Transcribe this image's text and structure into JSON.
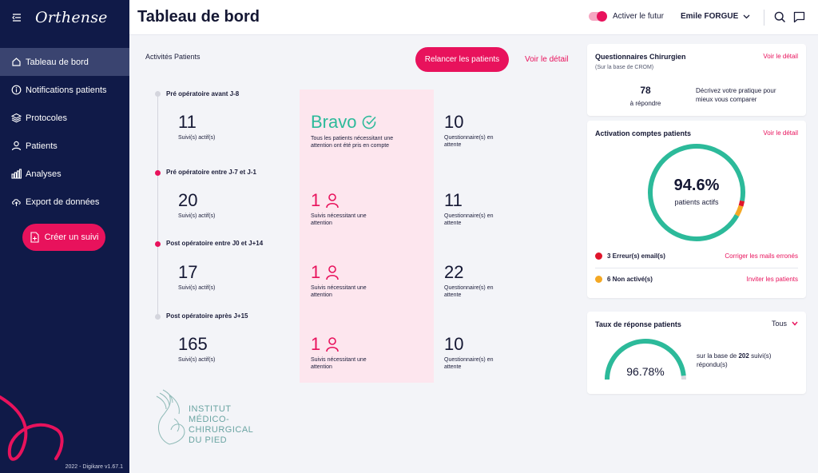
{
  "sidebar": {
    "logo": "Orthense",
    "items": [
      {
        "label": "Tableau de bord",
        "icon": "home-icon"
      },
      {
        "label": "Notifications patients",
        "icon": "info-icon"
      },
      {
        "label": "Protocoles",
        "icon": "layers-icon"
      },
      {
        "label": "Patients",
        "icon": "user-icon"
      },
      {
        "label": "Analyses",
        "icon": "bar-chart-icon"
      },
      {
        "label": "Export de données",
        "icon": "cloud-upload-icon"
      }
    ],
    "create_button": "Créer un suivi",
    "version": "2022 - Digikare v1.67.1"
  },
  "header": {
    "title": "Tableau de bord",
    "toggle_label": "Activer le futur",
    "toggle_on": true,
    "user": "Emile FORGUE"
  },
  "activity": {
    "title": "Activités Patients",
    "relaunch_button": "Relancer les patients",
    "detail_link": "Voir le détail",
    "stages": [
      {
        "label": "Pré opératoire avant J-8",
        "active": 11,
        "active_label": "Suivi(s) actif(s)",
        "attention": "Bravo",
        "attention_label": "Tous les patients nécessitant une attention ont été pris en compte",
        "questionnaires": 10,
        "questionnaires_label": "Questionnaire(s) en attente"
      },
      {
        "label": "Pré opératoire entre J-7 et J-1",
        "active": 20,
        "active_label": "Suivi(s) actif(s)",
        "attention": 1,
        "attention_label": "Suivis nécessitant une attention",
        "questionnaires": 11,
        "questionnaires_label": "Questionnaire(s) en attente"
      },
      {
        "label": "Post opératoire entre J0 et J+14",
        "active": 17,
        "active_label": "Suivi(s) actif(s)",
        "attention": 1,
        "attention_label": "Suivis nécessitant une attention",
        "questionnaires": 22,
        "questionnaires_label": "Questionnaire(s) en attente"
      },
      {
        "label": "Post opératoire après J+15",
        "active": 165,
        "active_label": "Suivi(s) actif(s)",
        "attention": 1,
        "attention_label": "Suivis nécessitant une attention",
        "questionnaires": 10,
        "questionnaires_label": "Questionnaire(s) en attente"
      }
    ],
    "institute": [
      "INSTITUT",
      "MÉDICO-",
      "CHIRURGICAL",
      "DU PIED"
    ]
  },
  "questionnaires_card": {
    "title": "Questionnaires Chirurgien",
    "subtitle": "(Sur la base de CROM)",
    "link": "Voir le détail",
    "count": "78",
    "count_label": "à répondre",
    "cta": "Décrivez votre pratique pour mieux vous comparer"
  },
  "activation_card": {
    "title": "Activation comptes patients",
    "link": "Voir le détail",
    "percent": "94.6%",
    "percent_label": "patients actifs",
    "active_fraction": 0.946,
    "error_fraction": 0.018,
    "inactive_fraction": 0.036,
    "errors_label": "3 Erreur(s) email(s)",
    "errors_action": "Corriger les mails erronés",
    "inactive_label": "6 Non activé(s)",
    "inactive_action": "Inviter les patients",
    "colors": {
      "active": "#2cba9a",
      "error": "#e0152b",
      "inactive": "#f4a824"
    }
  },
  "response_card": {
    "title": "Taux de réponse patients",
    "filter": "Tous",
    "percent": "96.78%",
    "fraction": 0.9678,
    "base_prefix": "sur la base de ",
    "base_count": "202",
    "base_suffix": " suivi(s)",
    "base_line2": "répondu(s)"
  },
  "colors": {
    "accent": "#e8125c",
    "sidebar": "#101a48",
    "teal": "#2cba9a"
  }
}
